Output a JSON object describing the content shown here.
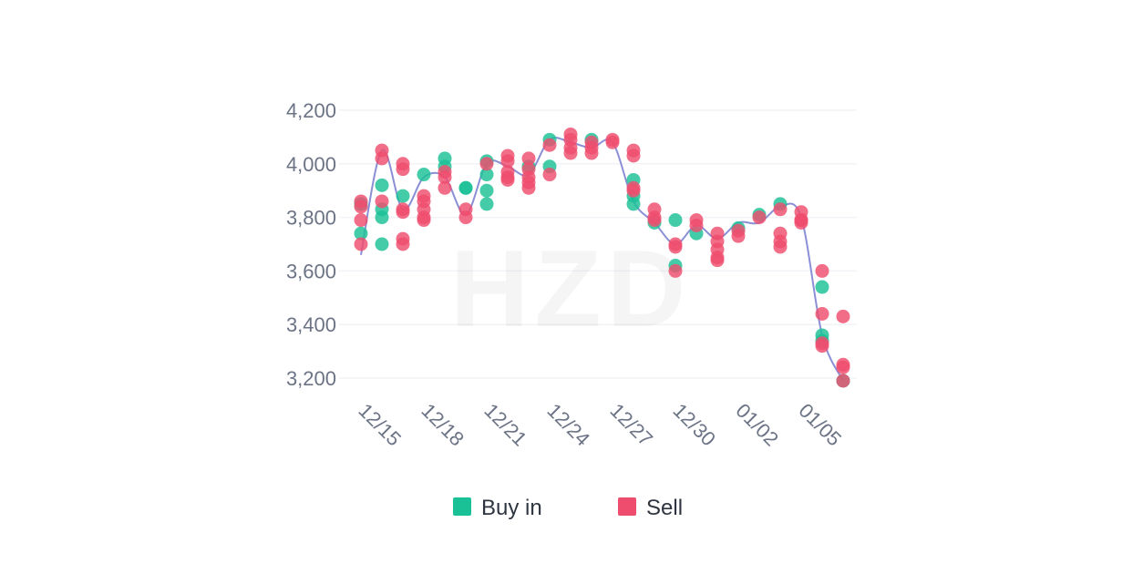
{
  "chart_data": {
    "type": "scatter",
    "title": "",
    "xlabel": "",
    "ylabel": "",
    "ylim": [
      3180,
      4200
    ],
    "y_ticks": [
      "4,200",
      "4,000",
      "3,800",
      "3,600",
      "3,400",
      "3,200"
    ],
    "y_tick_values": [
      4200,
      4000,
      3800,
      3600,
      3400,
      3200
    ],
    "x_ticks": [
      "12/15",
      "12/18",
      "12/21",
      "12/24",
      "12/27",
      "12/30",
      "01/02",
      "01/05"
    ],
    "x_tick_index": [
      0,
      3,
      6,
      9,
      12,
      15,
      18,
      21
    ],
    "x_index_range": [
      0,
      23
    ],
    "grid": true,
    "legend_position": "bottom",
    "watermark": "HZD",
    "colors": {
      "buy": "#1bc196",
      "sell": "#ef4d6e",
      "line": "#8b8fd6",
      "grid": "#f1f3f6",
      "tick": "#6b7385"
    },
    "line": [
      {
        "x": 0,
        "y": 3660
      },
      {
        "x": 1,
        "y": 4050
      },
      {
        "x": 2,
        "y": 3830
      },
      {
        "x": 3,
        "y": 3950
      },
      {
        "x": 4,
        "y": 3950
      },
      {
        "x": 5,
        "y": 3810
      },
      {
        "x": 6,
        "y": 4000
      },
      {
        "x": 7,
        "y": 3990
      },
      {
        "x": 8,
        "y": 3960
      },
      {
        "x": 9,
        "y": 4090
      },
      {
        "x": 10,
        "y": 4080
      },
      {
        "x": 11,
        "y": 4060
      },
      {
        "x": 12,
        "y": 4080
      },
      {
        "x": 13,
        "y": 3860
      },
      {
        "x": 14,
        "y": 3780
      },
      {
        "x": 15,
        "y": 3700
      },
      {
        "x": 16,
        "y": 3770
      },
      {
        "x": 17,
        "y": 3720
      },
      {
        "x": 18,
        "y": 3780
      },
      {
        "x": 19,
        "y": 3780
      },
      {
        "x": 20,
        "y": 3840
      },
      {
        "x": 21,
        "y": 3800
      },
      {
        "x": 22,
        "y": 3360
      },
      {
        "x": 23,
        "y": 3190
      }
    ],
    "series": [
      {
        "name": "Buy in",
        "points": [
          {
            "x": 0,
            "y": 3740
          },
          {
            "x": 0,
            "y": 3850
          },
          {
            "x": 1,
            "y": 3920
          },
          {
            "x": 1,
            "y": 3830
          },
          {
            "x": 1,
            "y": 3800
          },
          {
            "x": 1,
            "y": 3700
          },
          {
            "x": 2,
            "y": 3880
          },
          {
            "x": 3,
            "y": 3960
          },
          {
            "x": 4,
            "y": 4020
          },
          {
            "x": 4,
            "y": 3990
          },
          {
            "x": 5,
            "y": 3910
          },
          {
            "x": 5,
            "y": 3910
          },
          {
            "x": 6,
            "y": 4010
          },
          {
            "x": 6,
            "y": 3960
          },
          {
            "x": 6,
            "y": 3900
          },
          {
            "x": 6,
            "y": 3850
          },
          {
            "x": 8,
            "y": 3990
          },
          {
            "x": 9,
            "y": 4090
          },
          {
            "x": 9,
            "y": 3990
          },
          {
            "x": 11,
            "y": 4090
          },
          {
            "x": 13,
            "y": 3940
          },
          {
            "x": 13,
            "y": 3880
          },
          {
            "x": 13,
            "y": 3850
          },
          {
            "x": 14,
            "y": 3780
          },
          {
            "x": 15,
            "y": 3790
          },
          {
            "x": 15,
            "y": 3620
          },
          {
            "x": 16,
            "y": 3740
          },
          {
            "x": 18,
            "y": 3760
          },
          {
            "x": 19,
            "y": 3810
          },
          {
            "x": 20,
            "y": 3850
          },
          {
            "x": 22,
            "y": 3540
          },
          {
            "x": 22,
            "y": 3360
          },
          {
            "x": 22,
            "y": 3340
          },
          {
            "x": 23,
            "y": 3190
          }
        ]
      },
      {
        "name": "Sell",
        "points": [
          {
            "x": 0,
            "y": 3860
          },
          {
            "x": 0,
            "y": 3840
          },
          {
            "x": 0,
            "y": 3790
          },
          {
            "x": 0,
            "y": 3700
          },
          {
            "x": 1,
            "y": 4050
          },
          {
            "x": 1,
            "y": 4020
          },
          {
            "x": 1,
            "y": 3860
          },
          {
            "x": 2,
            "y": 4000
          },
          {
            "x": 2,
            "y": 3980
          },
          {
            "x": 2,
            "y": 3830
          },
          {
            "x": 2,
            "y": 3820
          },
          {
            "x": 2,
            "y": 3720
          },
          {
            "x": 2,
            "y": 3700
          },
          {
            "x": 3,
            "y": 3880
          },
          {
            "x": 3,
            "y": 3860
          },
          {
            "x": 3,
            "y": 3830
          },
          {
            "x": 3,
            "y": 3800
          },
          {
            "x": 3,
            "y": 3790
          },
          {
            "x": 4,
            "y": 3970
          },
          {
            "x": 4,
            "y": 3950
          },
          {
            "x": 4,
            "y": 3910
          },
          {
            "x": 5,
            "y": 3830
          },
          {
            "x": 5,
            "y": 3800
          },
          {
            "x": 6,
            "y": 4000
          },
          {
            "x": 7,
            "y": 4030
          },
          {
            "x": 7,
            "y": 4010
          },
          {
            "x": 7,
            "y": 3970
          },
          {
            "x": 7,
            "y": 3950
          },
          {
            "x": 7,
            "y": 3940
          },
          {
            "x": 8,
            "y": 4020
          },
          {
            "x": 8,
            "y": 3980
          },
          {
            "x": 8,
            "y": 3950
          },
          {
            "x": 8,
            "y": 3930
          },
          {
            "x": 8,
            "y": 3910
          },
          {
            "x": 9,
            "y": 4070
          },
          {
            "x": 9,
            "y": 3960
          },
          {
            "x": 10,
            "y": 4110
          },
          {
            "x": 10,
            "y": 4090
          },
          {
            "x": 10,
            "y": 4060
          },
          {
            "x": 10,
            "y": 4040
          },
          {
            "x": 11,
            "y": 4080
          },
          {
            "x": 11,
            "y": 4060
          },
          {
            "x": 11,
            "y": 4040
          },
          {
            "x": 12,
            "y": 4090
          },
          {
            "x": 12,
            "y": 4080
          },
          {
            "x": 13,
            "y": 4050
          },
          {
            "x": 13,
            "y": 4030
          },
          {
            "x": 13,
            "y": 3910
          },
          {
            "x": 13,
            "y": 3900
          },
          {
            "x": 14,
            "y": 3830
          },
          {
            "x": 14,
            "y": 3800
          },
          {
            "x": 14,
            "y": 3790
          },
          {
            "x": 15,
            "y": 3700
          },
          {
            "x": 15,
            "y": 3690
          },
          {
            "x": 15,
            "y": 3600
          },
          {
            "x": 16,
            "y": 3790
          },
          {
            "x": 16,
            "y": 3770
          },
          {
            "x": 17,
            "y": 3740
          },
          {
            "x": 17,
            "y": 3710
          },
          {
            "x": 17,
            "y": 3680
          },
          {
            "x": 17,
            "y": 3650
          },
          {
            "x": 17,
            "y": 3640
          },
          {
            "x": 18,
            "y": 3750
          },
          {
            "x": 18,
            "y": 3730
          },
          {
            "x": 19,
            "y": 3800
          },
          {
            "x": 20,
            "y": 3830
          },
          {
            "x": 20,
            "y": 3740
          },
          {
            "x": 20,
            "y": 3710
          },
          {
            "x": 20,
            "y": 3690
          },
          {
            "x": 21,
            "y": 3820
          },
          {
            "x": 21,
            "y": 3790
          },
          {
            "x": 21,
            "y": 3790
          },
          {
            "x": 21,
            "y": 3780
          },
          {
            "x": 22,
            "y": 3600
          },
          {
            "x": 22,
            "y": 3440
          },
          {
            "x": 22,
            "y": 3330
          },
          {
            "x": 22,
            "y": 3320
          },
          {
            "x": 23,
            "y": 3430
          },
          {
            "x": 23,
            "y": 3250
          },
          {
            "x": 23,
            "y": 3240
          },
          {
            "x": 23,
            "y": 3190
          }
        ]
      }
    ]
  }
}
